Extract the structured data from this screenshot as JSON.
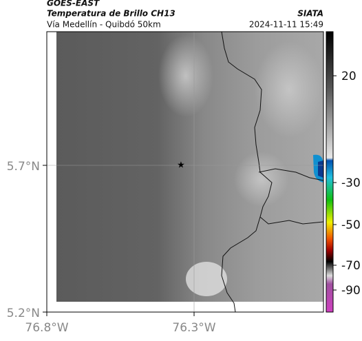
{
  "header": {
    "title": "GOES-EAST",
    "subtitle": "Temperatura de Brillo CH13",
    "source": "SIATA",
    "region": "Vía Medellín - Quibdó 50km",
    "timestamp": "2024-11-11 15:49"
  },
  "map": {
    "lat_labels": [
      "5.7°N",
      "5.2°N"
    ],
    "lon_labels": [
      "76.8°W",
      "76.3°W"
    ]
  },
  "colorbar": {
    "labels": [
      "20",
      "-30",
      "-50",
      "-70",
      "-90"
    ]
  }
}
